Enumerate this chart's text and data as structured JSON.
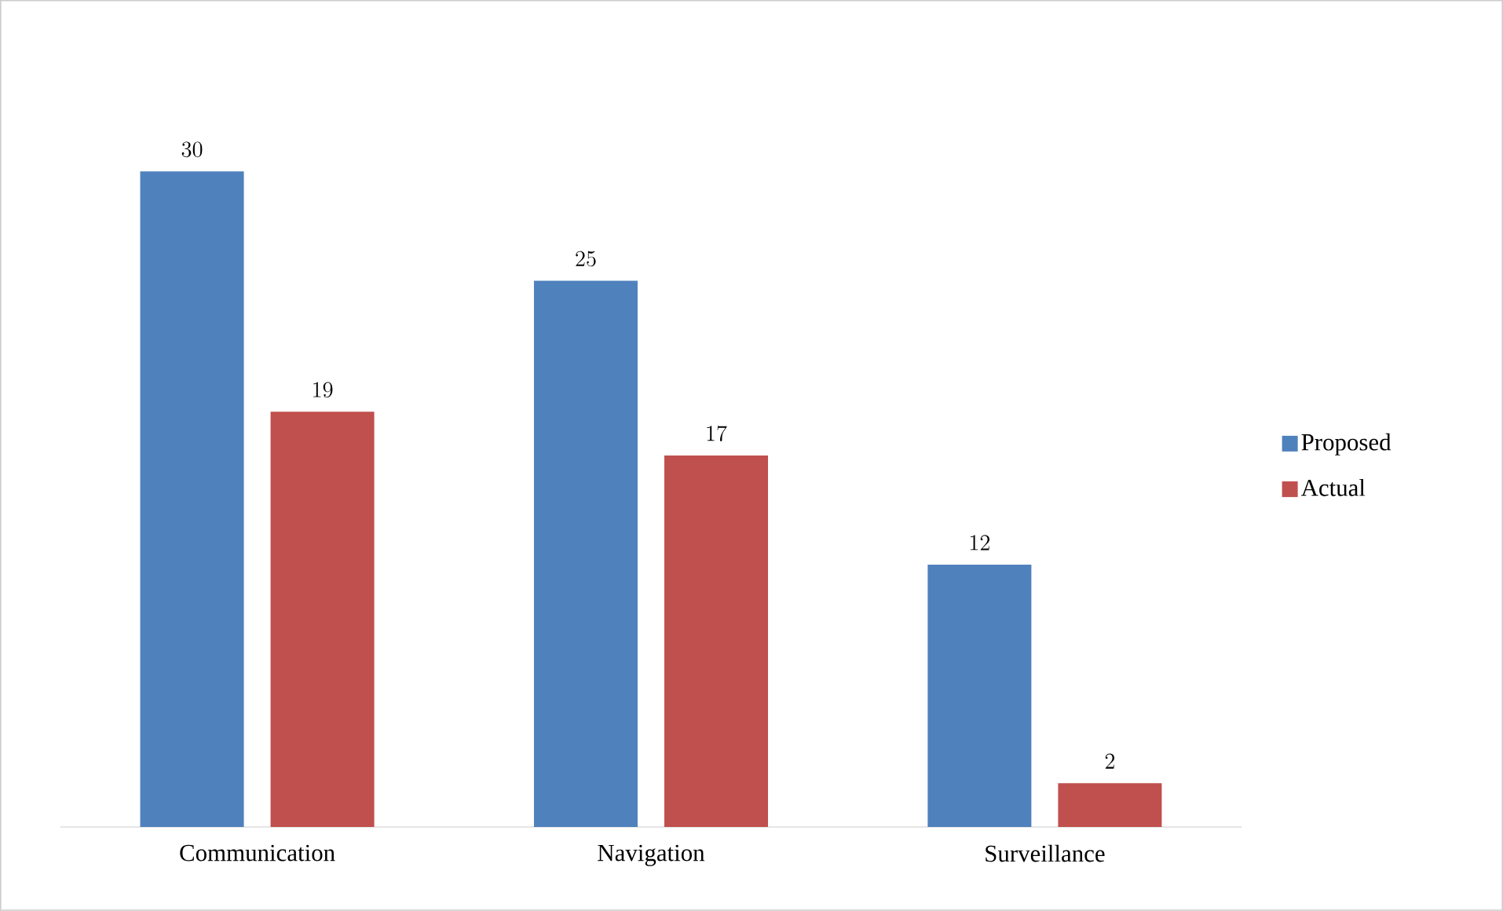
{
  "chart_data": {
    "type": "bar",
    "categories": [
      "Communication",
      "Navigation",
      "Surveillance"
    ],
    "series": [
      {
        "name": "Proposed",
        "color": "#4f81bd",
        "values": [
          30,
          25,
          12
        ]
      },
      {
        "name": "Actual",
        "color": "#c0504d",
        "values": [
          19,
          17,
          2
        ]
      }
    ],
    "data_labels": true,
    "legend": "right"
  }
}
